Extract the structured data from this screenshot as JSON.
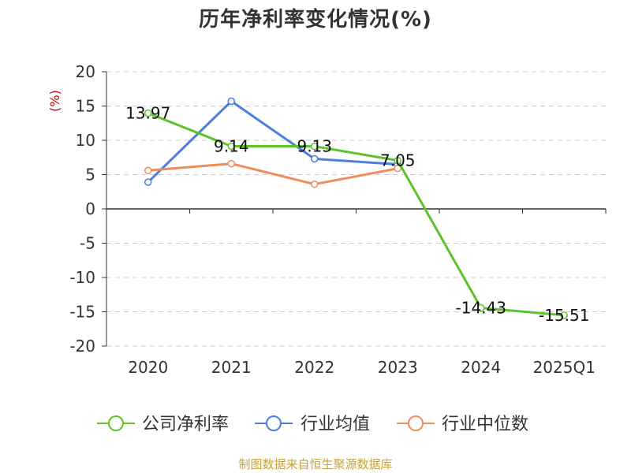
{
  "title": "历年净利率变化情况(%)",
  "source": "制图数据来自恒生聚源数据库",
  "chart_data": {
    "type": "line",
    "title": "历年净利率变化情况(%)",
    "ylabel": "(%)",
    "ylim": [
      -20,
      20
    ],
    "yticks": [
      20,
      15,
      10,
      5,
      0,
      -5,
      -10,
      -15,
      -20
    ],
    "categories": [
      "2020",
      "2021",
      "2022",
      "2023",
      "2024",
      "2025Q1"
    ],
    "grid": true,
    "legend_position": "bottom",
    "series": [
      {
        "name": "公司净利率",
        "color": "#5cc42a",
        "values": [
          13.97,
          9.14,
          9.13,
          7.05,
          -14.43,
          -15.51
        ],
        "labels": [
          "13.97",
          "9.14",
          "9.13",
          "7.05",
          "-14.43",
          "-15.51"
        ]
      },
      {
        "name": "行业均值",
        "color": "#4a7fdc",
        "values": [
          3.9,
          15.7,
          7.3,
          6.5,
          null,
          null
        ]
      },
      {
        "name": "行业中位数",
        "color": "#f08c5a",
        "values": [
          5.6,
          6.6,
          3.6,
          5.9,
          null,
          null
        ]
      }
    ]
  }
}
